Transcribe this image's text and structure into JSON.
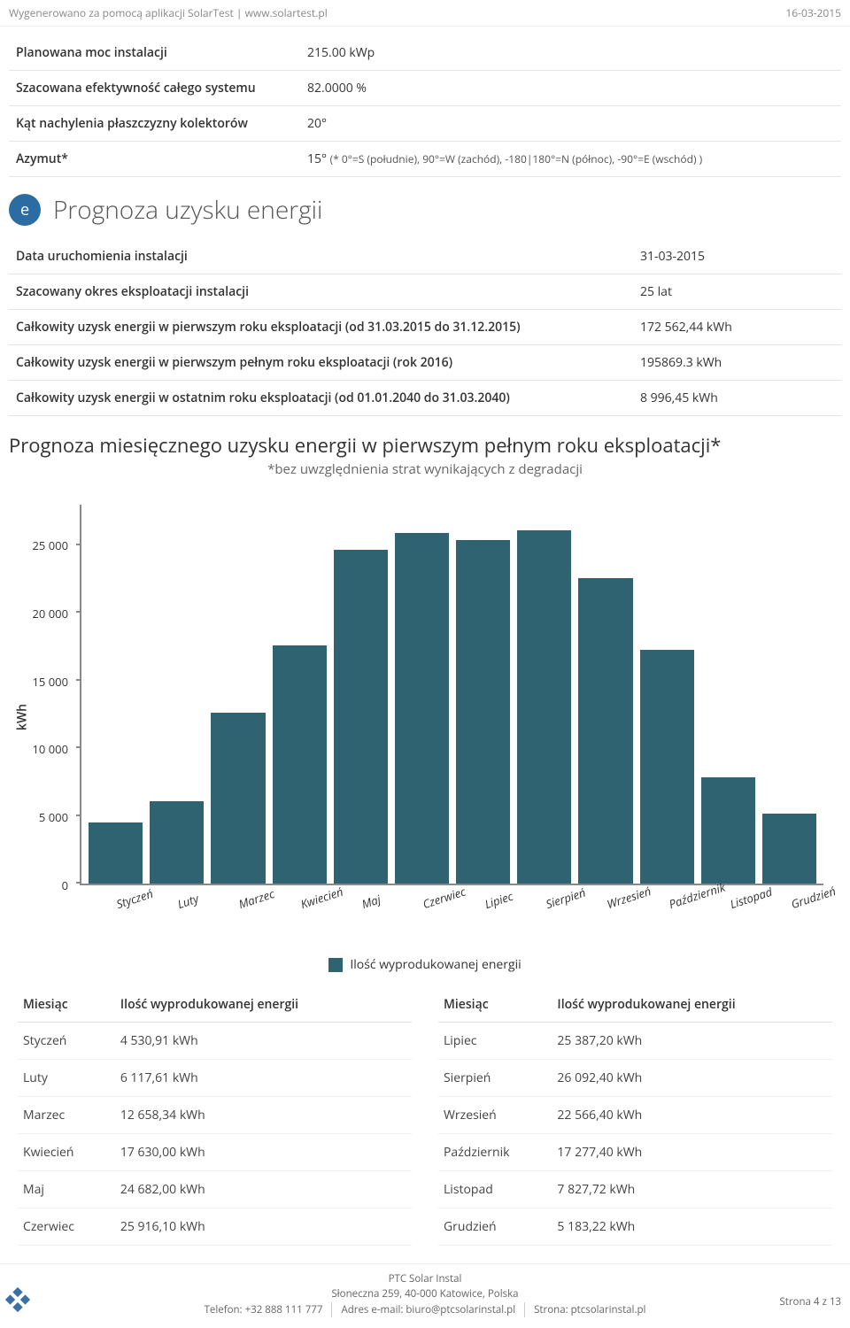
{
  "header": {
    "generated_by": "Wygenerowano za pomocą aplikacji SolarTest | www.solartest.pl",
    "date": "16-03-2015"
  },
  "params": [
    {
      "label": "Planowana moc instalacji",
      "value": "215.00 kWp"
    },
    {
      "label": "Szacowana efektywność całego systemu",
      "value": "82.0000 %"
    },
    {
      "label": "Kąt nachylenia płaszczyzny kolektorów",
      "value": "20°"
    }
  ],
  "azimuth": {
    "label": "Azymut*",
    "value": "15°",
    "note": "(* 0°=S (południe), 90°=W (zachód), -180|180°=N (północ), -90°=E (wschód) )"
  },
  "section": {
    "badge": "e",
    "title": "Prognoza uzysku energii"
  },
  "forecast_rows": [
    {
      "label": "Data uruchomienia instalacji",
      "value": "31-03-2015"
    },
    {
      "label": "Szacowany okres eksploatacji instalacji",
      "value": "25 lat"
    },
    {
      "label": "Całkowity uzysk energii w pierwszym roku eksploatacji (od 31.03.2015 do 31.12.2015)",
      "value": "172 562,44 kWh"
    },
    {
      "label": "Całkowity uzysk energii w pierwszym pełnym roku eksploatacji (rok 2016)",
      "value": "195869.3 kWh"
    },
    {
      "label": "Całkowity uzysk energii w ostatnim roku eksploatacji (od 01.01.2040 do 31.03.2040)",
      "value": "8 996,45 kWh"
    }
  ],
  "chart": {
    "title": "Prognoza miesięcznego uzysku energii w pierwszym pełnym roku eksploatacji*",
    "subtitle": "*bez uwzględnienia strat wynikających z degradacji",
    "type": "bar",
    "y_label": "kWh",
    "y_max": 28000,
    "y_ticks": [
      0,
      5000,
      10000,
      15000,
      20000,
      25000
    ],
    "y_tick_labels": [
      "0",
      "5 000",
      "10 000",
      "15 000",
      "20 000",
      "25 000"
    ],
    "bar_color": "#2f6372",
    "axis_color": "#888888",
    "categories": [
      "Styczeń",
      "Luty",
      "Marzec",
      "Kwiecień",
      "Maj",
      "Czerwiec",
      "Lipiec",
      "Sierpień",
      "Wrzesień",
      "Październik",
      "Listopad",
      "Grudzień"
    ],
    "values": [
      4530.91,
      6117.61,
      12658.34,
      17630.0,
      24682.0,
      25916.1,
      25387.2,
      26092.4,
      22566.4,
      17277.4,
      7827.72,
      5183.22
    ],
    "legend_label": "Ilość wyprodukowanej energii"
  },
  "month_table": {
    "col_month": "Miesiąc",
    "col_energy": "Ilość wyprodukowanej energii",
    "left": [
      {
        "m": "Styczeń",
        "v": "4 530,91 kWh"
      },
      {
        "m": "Luty",
        "v": "6 117,61 kWh"
      },
      {
        "m": "Marzec",
        "v": "12 658,34 kWh"
      },
      {
        "m": "Kwiecień",
        "v": "17 630,00 kWh"
      },
      {
        "m": "Maj",
        "v": "24 682,00 kWh"
      },
      {
        "m": "Czerwiec",
        "v": "25 916,10 kWh"
      }
    ],
    "right": [
      {
        "m": "Lipiec",
        "v": "25 387,20 kWh"
      },
      {
        "m": "Sierpień",
        "v": "26 092,40 kWh"
      },
      {
        "m": "Wrzesień",
        "v": "22 566,40 kWh"
      },
      {
        "m": "Październik",
        "v": "17 277,40 kWh"
      },
      {
        "m": "Listopad",
        "v": "7 827,72 kWh"
      },
      {
        "m": "Grudzień",
        "v": "5 183,22 kWh"
      }
    ]
  },
  "footer": {
    "company": "PTC Solar Instal",
    "address": "Słoneczna 259, 40-000 Katowice, Polska",
    "phone": "Telefon: +32 888 111 777",
    "email": "Adres e-mail: biuro@ptcsolarinstal.pl",
    "site": "Strona: ptcsolarinstal.pl",
    "page": "Strona 4 z 13"
  }
}
